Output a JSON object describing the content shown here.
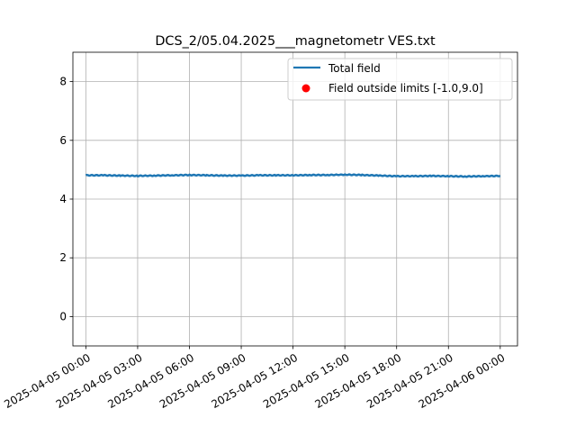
{
  "chart_data": {
    "type": "line",
    "title": "DCS_2/05.04.2025___magnetometr VES.txt",
    "xlabel": "",
    "ylabel": "",
    "ylim": [
      -1.0,
      9.0
    ],
    "xlim_hours": [
      -0.75,
      25.0
    ],
    "grid": true,
    "legend_placement": "upper-right",
    "yticks": [
      0,
      2,
      4,
      6,
      8
    ],
    "xticks": [
      {
        "hour": 0,
        "label": "2025-04-05 00:00"
      },
      {
        "hour": 3,
        "label": "2025-04-05 03:00"
      },
      {
        "hour": 6,
        "label": "2025-04-05 06:00"
      },
      {
        "hour": 9,
        "label": "2025-04-05 09:00"
      },
      {
        "hour": 12,
        "label": "2025-04-05 12:00"
      },
      {
        "hour": 15,
        "label": "2025-04-05 15:00"
      },
      {
        "hour": 18,
        "label": "2025-04-05 18:00"
      },
      {
        "hour": 21,
        "label": "2025-04-05 21:00"
      },
      {
        "hour": 24,
        "label": "2025-04-06 00:00"
      }
    ],
    "series": [
      {
        "name": "Total field",
        "kind": "line",
        "color": "#1f77b4",
        "x_hours": [
          0,
          1,
          2,
          3,
          4,
          5,
          6,
          7,
          8,
          9,
          10,
          11,
          12,
          13,
          14,
          15,
          16,
          17,
          18,
          19,
          20,
          21,
          22,
          23,
          24
        ],
        "y": [
          4.81,
          4.81,
          4.8,
          4.79,
          4.8,
          4.81,
          4.82,
          4.81,
          4.8,
          4.8,
          4.81,
          4.81,
          4.81,
          4.82,
          4.82,
          4.83,
          4.82,
          4.8,
          4.78,
          4.78,
          4.79,
          4.78,
          4.77,
          4.78,
          4.79
        ]
      },
      {
        "name": "Field outside limits [-1.0,9.0]",
        "kind": "scatter",
        "color": "#ff0000",
        "x_hours": [],
        "y": []
      }
    ]
  }
}
